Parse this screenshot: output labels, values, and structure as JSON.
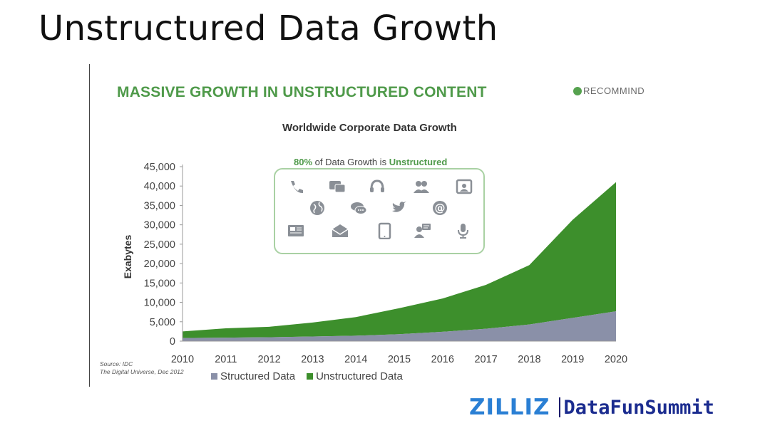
{
  "slide": {
    "title": "Unstructured Data Growth"
  },
  "panel": {
    "headline": "MASSIVE GROWTH IN UNSTRUCTURED CONTENT",
    "brand": "RECOMMIND",
    "subtitle_pct": "80%",
    "subtitle_mid": " of Data Growth is ",
    "subtitle_word": "Unstructured",
    "source_line1": "Source: IDC",
    "source_line2": "The Digital Universe, Dec 2012",
    "icons": [
      "phone-icon",
      "video-chat-icon",
      "headset-icon",
      "people-icon",
      "video-screen-icon",
      "globe-icon",
      "chat-bubbles-icon",
      "twitter-bird-icon",
      "at-sign-icon",
      "newspaper-icon",
      "mail-icon",
      "tablet-icon",
      "speaking-person-icon",
      "microphone-icon"
    ]
  },
  "footer": {
    "brand": "ZILLIZ",
    "partner": "DataFunSummit"
  },
  "colors": {
    "structured": "#8a90a8",
    "unstructured": "#3d8f2c",
    "headline": "#4f9a4a"
  },
  "chart_data": {
    "type": "area",
    "stacked": true,
    "title": "Worldwide Corporate Data Growth",
    "xlabel": "",
    "ylabel": "Exabytes",
    "x": [
      "2010",
      "2011",
      "2012",
      "2013",
      "2014",
      "2015",
      "2016",
      "2017",
      "2018",
      "2019",
      "2020"
    ],
    "series": [
      {
        "name": "Structured Data",
        "values": [
          800,
          900,
          1000,
          1200,
          1400,
          1800,
          2400,
          3200,
          4300,
          6000,
          7700
        ]
      },
      {
        "name": "Unstructured Data",
        "values": [
          1700,
          2400,
          2700,
          3600,
          4800,
          6700,
          8600,
          11300,
          15300,
          25300,
          33300
        ]
      }
    ],
    "yticks": [
      "0",
      "5,000",
      "10,000",
      "15,000",
      "20,000",
      "25,000",
      "30,000",
      "35,000",
      "40,000",
      "45,000"
    ],
    "ylim": [
      0,
      45000
    ],
    "grid": false,
    "legend_position": "bottom"
  }
}
